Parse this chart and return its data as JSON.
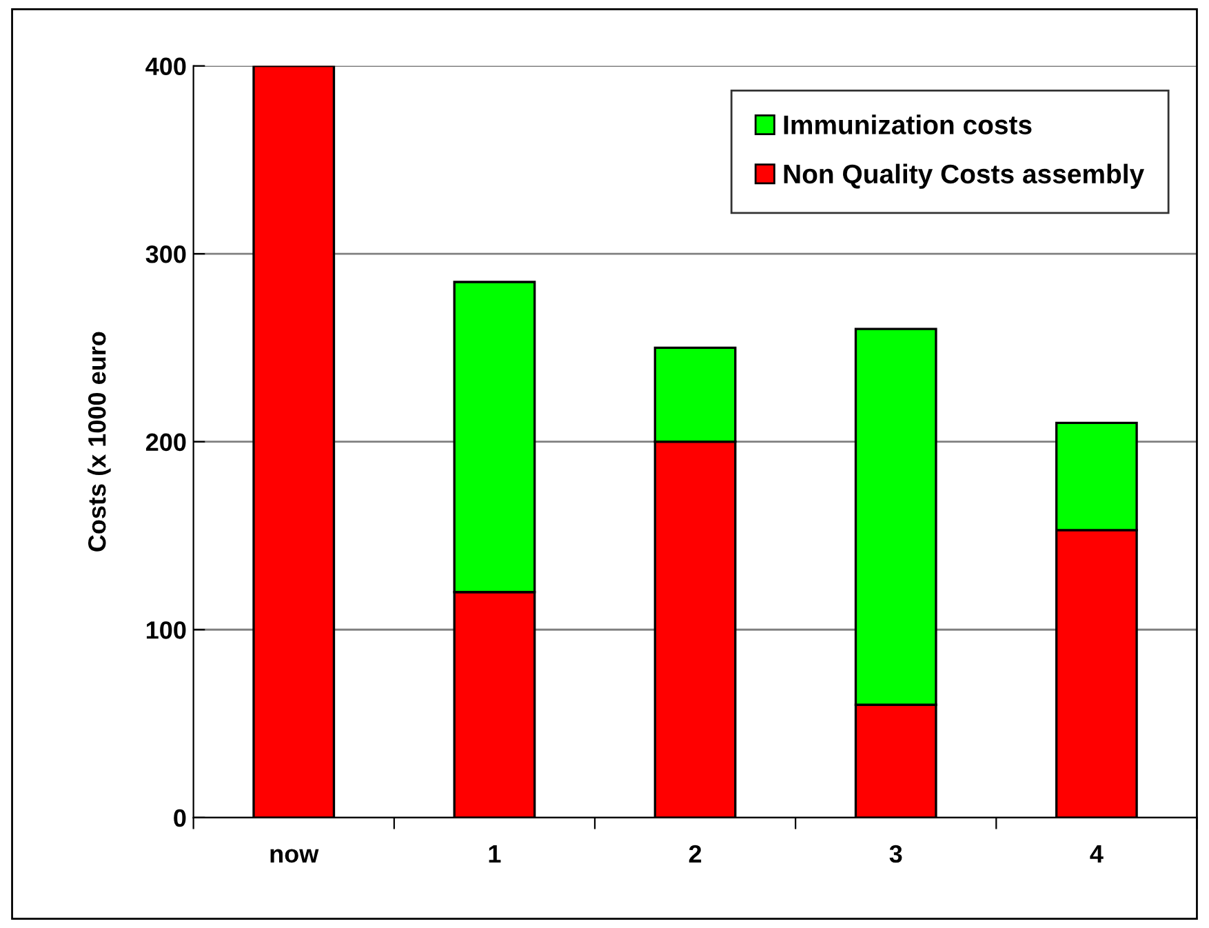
{
  "chart_data": {
    "type": "bar",
    "stacked": true,
    "ylabel": "Costs (x 1000 euro",
    "categories": [
      "now",
      "1",
      "2",
      "3",
      "4"
    ],
    "series": [
      {
        "name": "Non Quality Costs assembly",
        "color": "#ff0000",
        "values": [
          400,
          120,
          200,
          60,
          153
        ]
      },
      {
        "name": "Immunization costs",
        "color": "#00ff00",
        "values": [
          null,
          165,
          50,
          200,
          57
        ]
      }
    ],
    "ylim": [
      0,
      400
    ],
    "yticks": [
      0,
      100,
      200,
      300,
      400
    ],
    "grid": "y",
    "legend": "top right"
  }
}
